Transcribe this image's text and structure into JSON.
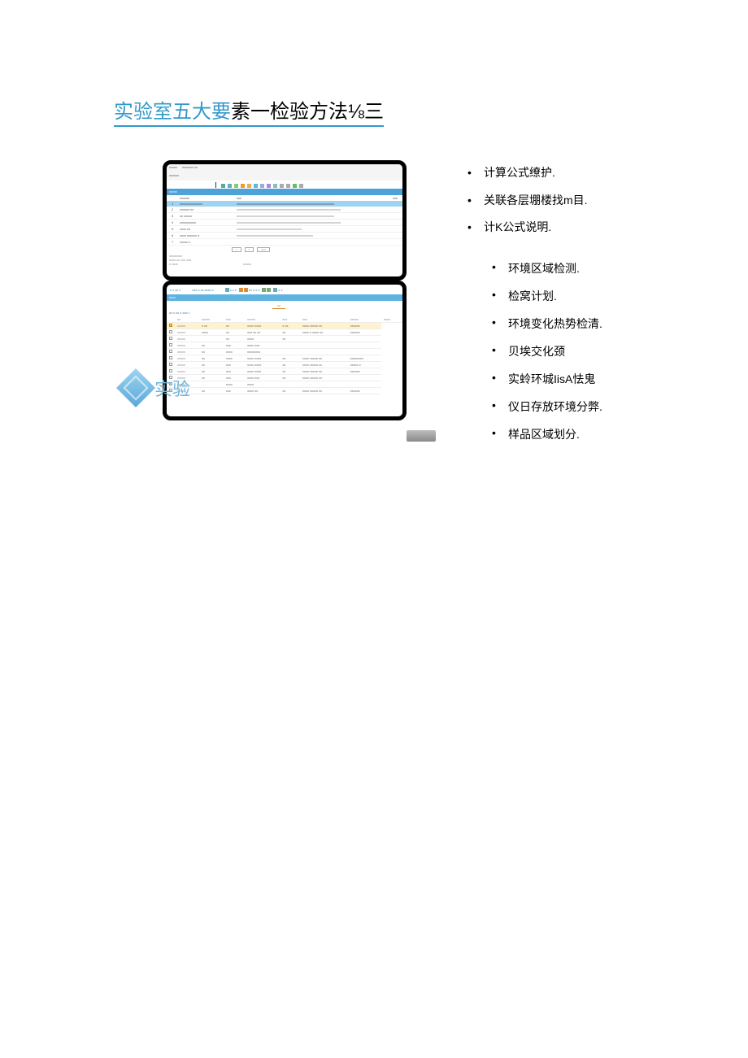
{
  "title": {
    "p1": "实验室五大要",
    "p2": "素一检",
    "p3": "验方法⅛三"
  },
  "right": {
    "main": [
      "计算公式缭护.",
      "关联各层堋楼找m目.",
      "计K公式说明."
    ],
    "sub": [
      "环境区域检测.",
      "检窝计划.",
      "环境变化热势检清.",
      "贝埃交化颈",
      "实蛉环城IisA怯鬼",
      "仪日存放环境分弊.",
      "样品区域划分."
    ]
  },
  "colors": {
    "title_blue": "#3399cc",
    "band_blue": "#4da3d6",
    "band_blue2": "#5fb3e0",
    "hl_row": "#9fd3ef",
    "sel_row": "#fff2cc",
    "tab_orange": "#d88a2a"
  },
  "topApp": {
    "crumb_a": "xxxxx",
    "crumb_b": "xxxxxxx xx",
    "crumb_c": "xxxxxx",
    "toolbar_icons": [
      "#5a9",
      "#6ab",
      "#8c6",
      "#e93",
      "#ea5",
      "#5bd",
      "#9ad",
      "#a8d",
      "#8bc",
      "#aaa",
      "#aaa",
      "#6b6",
      "#aaa"
    ],
    "section": "xxxxx",
    "head": {
      "idx": "",
      "name": "xxxxxx",
      "desc": "xxx",
      "r": "xxx"
    },
    "hl": {
      "idx": "1",
      "name": "xxxxxxxxxxxxxx",
      "desc": "xxxxxxxxxxxxxxxxxxxxxxxxxxxxxxxxxxxxxxxxxxxxxxxxxxxxxxxxxxxx"
    },
    "rows": [
      {
        "idx": "2",
        "name": "xxxxxx xx",
        "desc": "xxxxxxxxxxxxxxxxxxxxxxxxxxxxxxxxxxxxxxxxxxxxxxxxxxxxxxxxxxxxxxxx"
      },
      {
        "idx": "3",
        "name": "xx xxxxx",
        "desc": "xxxxxxxxxxxxxxxxxxxxxxxxxxxxxxxxxxxxxxxxxxxxxxxxxxxxxxxxxxxx"
      },
      {
        "idx": "4",
        "name": "xxxxxxxxxx",
        "desc": "xxxxxxxxxxxxxxxxxxxxxxxxxxxxxxxxxxxxxxxxxxxxxxxxxxxxxxxxxxxxxxxx"
      },
      {
        "idx": "5",
        "name": "xxxx xx",
        "desc": "xxxxxxxxxxxxxxxxxxxxxxxxxxxxxxxxxxxxxxxx"
      },
      {
        "idx": "6",
        "name": "xxxx xxxxxx x",
        "desc": "xxxxxxxxxxxxxxxxxxxxxxxxxxxxxxxxxxxxxxxxxxxxxxx"
      },
      {
        "idx": "7",
        "name": "xxxxx x",
        "desc": ""
      }
    ],
    "btns": [
      "x",
      "x",
      "xxxx"
    ],
    "footer": [
      "xxxxxxxx",
      "xxxx xx  xxx xxx",
      "x    xxxx",
      "xxxxx"
    ]
  },
  "bottomApp": {
    "tb_left": "x  x xx x",
    "tb_mid": "xxx x xx xxxx x",
    "tb_r1": "x x x",
    "tb_r2": "xx x x x",
    "tb_r3": "x x",
    "section": "xxxx",
    "tab": "xx",
    "crumbs": "xx x xx x  xxx",
    "headers": [
      "",
      "xx",
      "xxxxx",
      "xxx",
      "xxxxx",
      "xxx",
      "xxx",
      "xxxxx",
      "xxxx"
    ],
    "rows": [
      {
        "sel": true,
        "c": [
          "xxxxx",
          "x  xx",
          "xx",
          "xxxx xxxx",
          "x xx",
          "xxxx xxxxx xx",
          "xxxxxx"
        ]
      },
      {
        "sel": false,
        "c": [
          "xxxxx",
          "xxxx",
          "xx",
          "xxx xx xx",
          "xx",
          "xxxx  x xxxx xx",
          "xxxxxx"
        ]
      },
      {
        "sel": false,
        "c": [
          "xxxxx",
          "",
          "xx",
          "xxxx",
          "xx",
          "",
          ""
        ]
      },
      {
        "sel": false,
        "c": [
          "xxxxx",
          "xx",
          "xxx",
          "xxxx xxx",
          "",
          "",
          ""
        ]
      },
      {
        "sel": false,
        "c": [
          "xxxxx",
          "xx",
          "xxxx",
          "xxxxxxxx",
          "",
          "",
          ""
        ]
      },
      {
        "sel": false,
        "c": [
          "xxxxx",
          "xx",
          "xxxx",
          "xxxx xxxx",
          "xx",
          "xxxx xxxxx xx",
          "xxxxxxxx"
        ]
      },
      {
        "sel": false,
        "c": [
          "xxxxx",
          "xx",
          "xxx",
          "xxxx xxxx",
          "xx",
          "xxxx  xxxxx xx",
          "xxxxx x"
        ]
      },
      {
        "sel": false,
        "c": [
          "xxxxx",
          "xx",
          "xxx",
          "xxxx xxxx",
          "xx",
          "xxxx xxxxx xx",
          "xxxxxx"
        ]
      },
      {
        "sel": false,
        "c": [
          "xxxxx",
          "xx",
          "xxx",
          "xxxx xxx",
          "xx",
          "xxxx  xxxxx  xx",
          ""
        ]
      },
      {
        "sel": false,
        "c": [
          "xxxxx",
          "",
          "xxxx",
          "xxxx",
          "",
          "",
          ""
        ]
      },
      {
        "sel": false,
        "c": [
          "xxxxx",
          "xx",
          "xxx",
          "xxxx xx",
          "xx",
          "xxxx  xxxxx  xx",
          "xxxxxx"
        ]
      }
    ]
  },
  "watermark": "实验"
}
